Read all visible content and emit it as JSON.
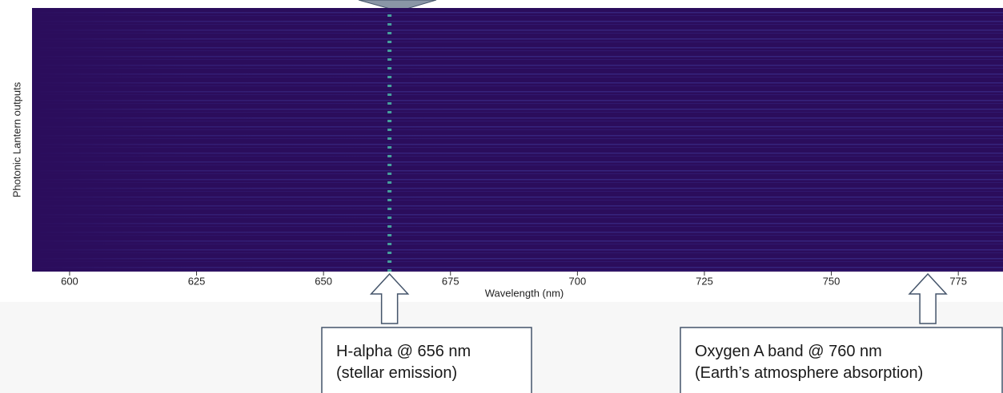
{
  "chart_data": {
    "type": "heatmap",
    "xlabel": "Wavelength (nm)",
    "ylabel": "Photonic Lantern outputs",
    "xlim": [
      592.6,
      783.8
    ],
    "xticks": [
      600,
      625,
      650,
      675,
      700,
      725,
      750,
      775
    ],
    "background_color": "#2b0d5c",
    "stripe_color": "#3a2d8c",
    "emission_color": "#4fd1b0",
    "annotations": [
      {
        "x": 663,
        "lines": [
          "H-alpha @ 656 nm",
          "(stellar emission)"
        ]
      },
      {
        "x": 769,
        "lines": [
          "Oxygen A band @ 760 nm",
          "(Earth’s atmosphere absorption)"
        ]
      }
    ]
  }
}
